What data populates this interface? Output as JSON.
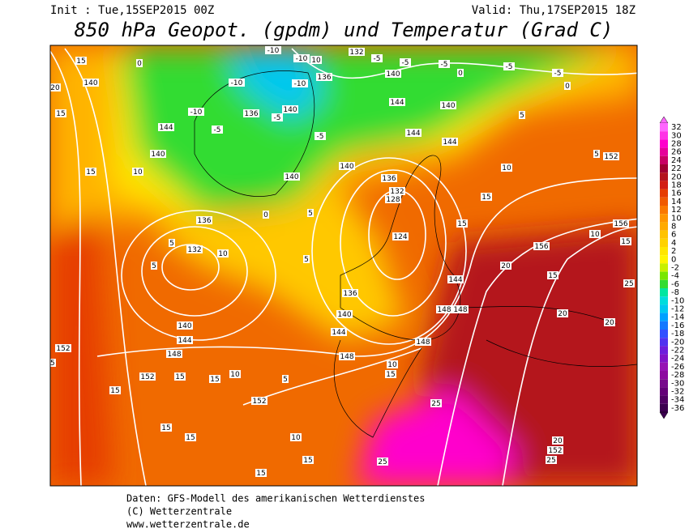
{
  "header": {
    "init": "Init : Tue,15SEP2015 00Z",
    "valid": "Valid: Thu,17SEP2015 18Z",
    "title": "850 hPa Geopot. (gpdm) und Temperatur (Grad C)"
  },
  "colorbar": {
    "ticks": [
      32,
      30,
      28,
      26,
      24,
      22,
      20,
      18,
      16,
      14,
      12,
      10,
      8,
      6,
      4,
      2,
      0,
      -2,
      -4,
      -6,
      -8,
      -10,
      -12,
      -14,
      -16,
      -18,
      -20,
      -22,
      -24,
      -26,
      -28,
      -30,
      -32,
      -34,
      -36
    ],
    "colors": [
      "#ff66ff",
      "#ff33e6",
      "#ff00cc",
      "#e6009a",
      "#c80064",
      "#a00032",
      "#b4141e",
      "#d21e14",
      "#e63c00",
      "#f05a00",
      "#fa7800",
      "#ff9600",
      "#ffaa00",
      "#ffc300",
      "#ffd200",
      "#ffe600",
      "#fff500",
      "#c8f000",
      "#78e600",
      "#32dc32",
      "#00e6a0",
      "#00dcdc",
      "#00c8f0",
      "#00a0ff",
      "#1478ff",
      "#3250ff",
      "#5032f0",
      "#6e1edc",
      "#8214c8",
      "#9614b4",
      "#8c0aa0",
      "#780a8c",
      "#640078",
      "#500064",
      "#3c0050"
    ]
  },
  "map_labels": [
    "15",
    "140",
    "20",
    "15",
    "144",
    "140",
    "10",
    "15",
    "0",
    "-10",
    "-10",
    "-5",
    "136",
    "140",
    "-5",
    "-5",
    "140",
    "136",
    "132",
    "128",
    "124",
    "5",
    "0",
    "136",
    "132",
    "10",
    "5",
    "5",
    "5",
    "136",
    "140",
    "144",
    "140",
    "144",
    "148",
    "152",
    "15",
    "152",
    "15",
    "15",
    "10",
    "152",
    "5",
    "10",
    "15",
    "15",
    "15",
    "15",
    "15",
    "25",
    "25",
    "148",
    "148",
    "10",
    "15",
    "144",
    "148",
    "148",
    "15",
    "15",
    "20",
    "20",
    "20",
    "25",
    "15",
    "156",
    "156",
    "10",
    "15",
    "5",
    "152",
    "10",
    "144",
    "144",
    "140",
    "144",
    "140",
    "132",
    "136",
    "-5",
    "-5",
    "-5",
    "-5",
    "-5",
    "0",
    "0",
    "5",
    "-10",
    "-10",
    "10",
    "-10",
    "140",
    "140",
    "25",
    "152",
    "20"
  ],
  "footer": {
    "line1": "Daten: GFS-Modell des amerikanischen Wetterdienstes",
    "line2": "(C) Wetterzentrale",
    "line3": "www.wetterzentrale.de"
  }
}
